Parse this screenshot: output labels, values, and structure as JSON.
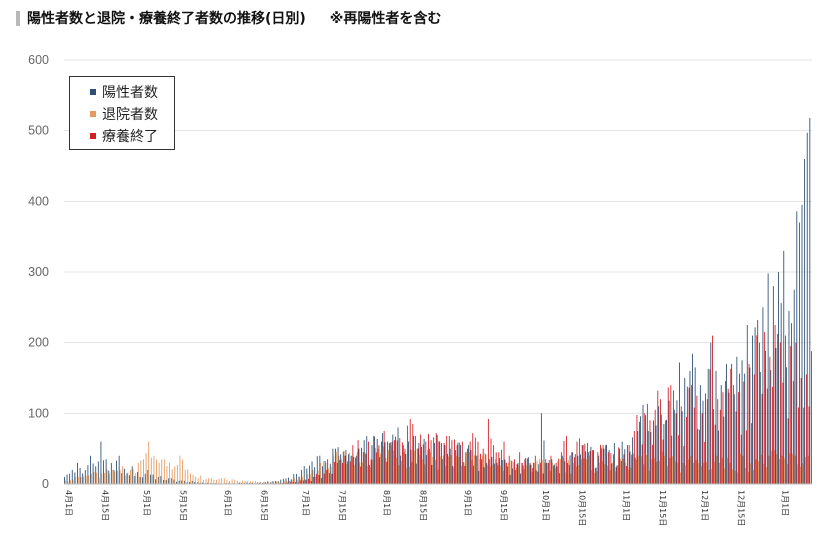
{
  "header": {
    "title": "陽性者数と退院・療養終了者数の推移(日別)",
    "note": "※再陽性者を含む"
  },
  "chart_data": {
    "type": "bar",
    "title": "陽性者数と退院・療養終了者数の推移(日別)",
    "ylim": [
      0,
      600
    ],
    "yticks": [
      0,
      100,
      200,
      300,
      400,
      500,
      600
    ],
    "grid": true,
    "legend_position": "top-left",
    "x_tick_labels": [
      "4月1日",
      "4月15日",
      "5月1日",
      "5月15日",
      "6月1日",
      "6月15日",
      "7月1日",
      "7月15日",
      "8月1日",
      "8月15日",
      "9月1日",
      "9月15日",
      "10月1日",
      "10月15日",
      "11月1日",
      "11月15日",
      "12月1日",
      "12月15日",
      "1月1日"
    ],
    "x_tick_day_index": [
      0,
      14,
      30,
      44,
      61,
      75,
      91,
      105,
      122,
      136,
      153,
      167,
      183,
      197,
      214,
      228,
      244,
      258,
      275
    ],
    "num_days": 286,
    "series": [
      {
        "name": "陽性者数",
        "color": "#2d4f72",
        "points": [
          [
            0,
            10
          ],
          [
            3,
            20
          ],
          [
            5,
            30
          ],
          [
            7,
            15
          ],
          [
            10,
            40
          ],
          [
            12,
            25
          ],
          [
            14,
            60
          ],
          [
            16,
            35
          ],
          [
            19,
            20
          ],
          [
            21,
            40
          ],
          [
            24,
            15
          ],
          [
            26,
            25
          ],
          [
            29,
            10
          ],
          [
            32,
            20
          ],
          [
            36,
            10
          ],
          [
            40,
            8
          ],
          [
            45,
            5
          ],
          [
            50,
            3
          ],
          [
            55,
            2
          ],
          [
            60,
            1
          ],
          [
            65,
            1
          ],
          [
            70,
            2
          ],
          [
            75,
            2
          ],
          [
            80,
            4
          ],
          [
            85,
            8
          ],
          [
            88,
            14
          ],
          [
            91,
            20
          ],
          [
            94,
            26
          ],
          [
            98,
            40
          ],
          [
            101,
            35
          ],
          [
            104,
            50
          ],
          [
            106,
            42
          ],
          [
            108,
            48
          ],
          [
            110,
            40
          ],
          [
            113,
            50
          ],
          [
            115,
            62
          ],
          [
            118,
            55
          ],
          [
            120,
            64
          ],
          [
            122,
            72
          ],
          [
            124,
            60
          ],
          [
            126,
            70
          ],
          [
            128,
            80
          ],
          [
            130,
            55
          ],
          [
            132,
            60
          ],
          [
            134,
            68
          ],
          [
            136,
            58
          ],
          [
            138,
            64
          ],
          [
            140,
            50
          ],
          [
            142,
            58
          ],
          [
            144,
            60
          ],
          [
            146,
            55
          ],
          [
            148,
            50
          ],
          [
            150,
            48
          ],
          [
            152,
            55
          ],
          [
            154,
            45
          ],
          [
            156,
            48
          ],
          [
            158,
            40
          ],
          [
            160,
            35
          ],
          [
            162,
            30
          ],
          [
            164,
            38
          ],
          [
            166,
            30
          ],
          [
            168,
            34
          ],
          [
            170,
            25
          ],
          [
            172,
            22
          ],
          [
            174,
            30
          ],
          [
            176,
            26
          ],
          [
            178,
            38
          ],
          [
            180,
            30
          ],
          [
            182,
            28
          ],
          [
            183,
            100
          ],
          [
            185,
            30
          ],
          [
            187,
            35
          ],
          [
            189,
            25
          ],
          [
            191,
            40
          ],
          [
            193,
            30
          ],
          [
            195,
            45
          ],
          [
            197,
            40
          ],
          [
            199,
            55
          ],
          [
            201,
            45
          ],
          [
            203,
            48
          ],
          [
            205,
            40
          ],
          [
            207,
            50
          ],
          [
            209,
            48
          ],
          [
            211,
            58
          ],
          [
            213,
            50
          ],
          [
            214,
            60
          ],
          [
            216,
            55
          ],
          [
            218,
            66
          ],
          [
            220,
            75
          ],
          [
            222,
            112
          ],
          [
            224,
            75
          ],
          [
            226,
            90
          ],
          [
            228,
            110
          ],
          [
            230,
            85
          ],
          [
            232,
            118
          ],
          [
            234,
            105
          ],
          [
            236,
            172
          ],
          [
            238,
            150
          ],
          [
            240,
            160
          ],
          [
            242,
            165
          ],
          [
            244,
            140
          ],
          [
            246,
            128
          ],
          [
            248,
            200
          ],
          [
            250,
            160
          ],
          [
            252,
            140
          ],
          [
            254,
            170
          ],
          [
            256,
            170
          ],
          [
            258,
            180
          ],
          [
            260,
            175
          ],
          [
            262,
            225
          ],
          [
            264,
            210
          ],
          [
            266,
            232
          ],
          [
            268,
            250
          ],
          [
            270,
            298
          ],
          [
            272,
            280
          ],
          [
            274,
            300
          ],
          [
            276,
            330
          ],
          [
            278,
            245
          ],
          [
            280,
            275
          ],
          [
            282,
            370
          ],
          [
            283,
            395
          ],
          [
            284,
            460
          ],
          [
            285,
            497
          ],
          [
            286,
            518
          ]
        ]
      },
      {
        "name": "退院者数",
        "color": "#e59a5f",
        "points": [
          [
            0,
            5
          ],
          [
            5,
            10
          ],
          [
            10,
            15
          ],
          [
            14,
            15
          ],
          [
            18,
            20
          ],
          [
            22,
            25
          ],
          [
            25,
            20
          ],
          [
            28,
            30
          ],
          [
            30,
            35
          ],
          [
            32,
            60
          ],
          [
            34,
            40
          ],
          [
            36,
            30
          ],
          [
            38,
            35
          ],
          [
            40,
            30
          ],
          [
            42,
            25
          ],
          [
            44,
            40
          ],
          [
            46,
            20
          ],
          [
            48,
            15
          ],
          [
            50,
            10
          ],
          [
            52,
            12
          ],
          [
            55,
            8
          ],
          [
            58,
            6
          ],
          [
            61,
            8
          ],
          [
            65,
            6
          ],
          [
            70,
            4
          ],
          [
            75,
            3
          ],
          [
            80,
            3
          ],
          [
            85,
            4
          ],
          [
            88,
            8
          ],
          [
            91,
            10
          ],
          [
            95,
            20
          ],
          [
            100,
            30
          ],
          [
            105,
            40
          ],
          [
            110,
            40
          ],
          [
            115,
            45
          ],
          [
            120,
            50
          ],
          [
            125,
            55
          ],
          [
            130,
            45
          ],
          [
            135,
            50
          ],
          [
            140,
            45
          ],
          [
            145,
            40
          ],
          [
            150,
            40
          ],
          [
            155,
            45
          ],
          [
            160,
            40
          ],
          [
            165,
            35
          ],
          [
            170,
            30
          ],
          [
            175,
            30
          ],
          [
            180,
            30
          ],
          [
            185,
            30
          ],
          [
            190,
            35
          ],
          [
            195,
            30
          ],
          [
            200,
            35
          ],
          [
            205,
            30
          ],
          [
            210,
            30
          ],
          [
            215,
            30
          ],
          [
            220,
            40
          ],
          [
            225,
            35
          ],
          [
            230,
            40
          ],
          [
            235,
            30
          ],
          [
            240,
            40
          ],
          [
            245,
            30
          ],
          [
            250,
            40
          ],
          [
            255,
            30
          ],
          [
            260,
            40
          ],
          [
            265,
            35
          ],
          [
            270,
            40
          ],
          [
            275,
            40
          ],
          [
            280,
            40
          ],
          [
            285,
            40
          ]
        ]
      },
      {
        "name": "療養終了",
        "color": "#d11f26",
        "points": [
          [
            0,
            0
          ],
          [
            40,
            0
          ],
          [
            80,
            0
          ],
          [
            91,
            5
          ],
          [
            95,
            10
          ],
          [
            100,
            20
          ],
          [
            104,
            30
          ],
          [
            107,
            40
          ],
          [
            110,
            55
          ],
          [
            112,
            62
          ],
          [
            114,
            45
          ],
          [
            116,
            60
          ],
          [
            118,
            68
          ],
          [
            120,
            55
          ],
          [
            122,
            75
          ],
          [
            124,
            58
          ],
          [
            126,
            62
          ],
          [
            128,
            65
          ],
          [
            130,
            50
          ],
          [
            132,
            92
          ],
          [
            134,
            68
          ],
          [
            136,
            70
          ],
          [
            138,
            60
          ],
          [
            140,
            62
          ],
          [
            142,
            72
          ],
          [
            144,
            58
          ],
          [
            146,
            68
          ],
          [
            148,
            62
          ],
          [
            150,
            55
          ],
          [
            152,
            60
          ],
          [
            154,
            50
          ],
          [
            156,
            72
          ],
          [
            158,
            60
          ],
          [
            160,
            50
          ],
          [
            162,
            92
          ],
          [
            164,
            55
          ],
          [
            166,
            45
          ],
          [
            168,
            60
          ],
          [
            170,
            40
          ],
          [
            172,
            35
          ],
          [
            174,
            45
          ],
          [
            176,
            35
          ],
          [
            178,
            30
          ],
          [
            180,
            40
          ],
          [
            182,
            30
          ],
          [
            184,
            35
          ],
          [
            186,
            40
          ],
          [
            188,
            30
          ],
          [
            190,
            45
          ],
          [
            192,
            68
          ],
          [
            194,
            45
          ],
          [
            196,
            60
          ],
          [
            198,
            55
          ],
          [
            200,
            58
          ],
          [
            202,
            48
          ],
          [
            204,
            45
          ],
          [
            206,
            55
          ],
          [
            208,
            45
          ],
          [
            210,
            42
          ],
          [
            212,
            52
          ],
          [
            214,
            42
          ],
          [
            216,
            55
          ],
          [
            218,
            75
          ],
          [
            220,
            88
          ],
          [
            222,
            100
          ],
          [
            224,
            90
          ],
          [
            226,
            105
          ],
          [
            228,
            120
          ],
          [
            230,
            90
          ],
          [
            232,
            140
          ],
          [
            234,
            100
          ],
          [
            236,
            110
          ],
          [
            238,
            95
          ],
          [
            240,
            140
          ],
          [
            242,
            125
          ],
          [
            244,
            100
          ],
          [
            246,
            120
          ],
          [
            248,
            210
          ],
          [
            250,
            120
          ],
          [
            252,
            130
          ],
          [
            254,
            135
          ],
          [
            256,
            140
          ],
          [
            258,
            130
          ],
          [
            260,
            145
          ],
          [
            262,
            170
          ],
          [
            264,
            155
          ],
          [
            266,
            200
          ],
          [
            268,
            215
          ],
          [
            270,
            180
          ],
          [
            272,
            225
          ],
          [
            274,
            200
          ],
          [
            276,
            210
          ],
          [
            278,
            195
          ],
          [
            280,
            200
          ],
          [
            282,
            150
          ],
          [
            284,
            155
          ],
          [
            286,
            188
          ]
        ]
      }
    ]
  }
}
